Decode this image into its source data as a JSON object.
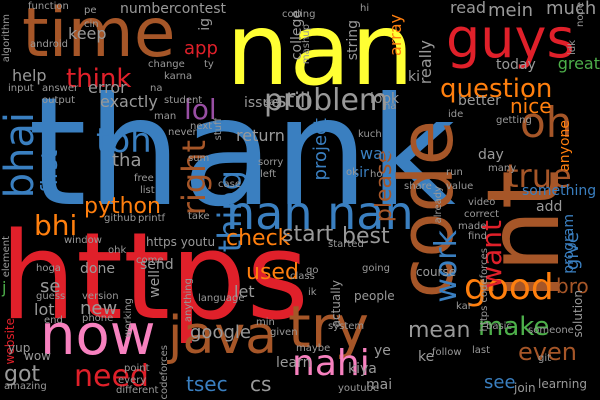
{
  "palette": {
    "background": "#000000",
    "blue": "#3a7fc0",
    "red": "#e0202a",
    "yellow": "#ffff33",
    "orange": "#ff7f0e",
    "brown": "#a65628",
    "pink": "#f781bf",
    "purple": "#984ea3",
    "green": "#4daf4a",
    "gray": "#999999"
  },
  "words": [
    {
      "text": "thank",
      "color": "blue"
    },
    {
      "text": "https",
      "color": "red"
    },
    {
      "text": "nan",
      "color": "yellow"
    },
    {
      "text": "time",
      "color": "brown"
    },
    {
      "text": "guys",
      "color": "red"
    },
    {
      "text": "int",
      "color": "brown"
    },
    {
      "text": "code",
      "color": "brown"
    },
    {
      "text": "now",
      "color": "pink"
    },
    {
      "text": "java",
      "color": "brown"
    },
    {
      "text": "try",
      "color": "brown"
    },
    {
      "text": "nan nan",
      "color": "blue"
    },
    {
      "text": "problem",
      "color": "gray"
    },
    {
      "text": "question",
      "color": "orange"
    },
    {
      "text": "bhai",
      "color": "blue"
    },
    {
      "text": "lol",
      "color": "purple"
    },
    {
      "text": "oh",
      "color": "brown"
    },
    {
      "text": "good",
      "color": "orange"
    },
    {
      "text": "true",
      "color": "brown"
    },
    {
      "text": "work",
      "color": "blue"
    },
    {
      "text": "nahi",
      "color": "pink"
    },
    {
      "text": "need",
      "color": "red"
    },
    {
      "text": "think",
      "color": "red"
    },
    {
      "text": "toh",
      "color": "blue"
    },
    {
      "text": "right",
      "color": "brown"
    },
    {
      "text": "thing",
      "color": "blue"
    },
    {
      "text": "bhi",
      "color": "orange"
    },
    {
      "text": "python",
      "color": "orange"
    },
    {
      "text": "check",
      "color": "orange"
    },
    {
      "text": "start",
      "color": "gray"
    },
    {
      "text": "best",
      "color": "gray"
    },
    {
      "text": "want",
      "color": "red"
    },
    {
      "text": "make",
      "color": "green"
    },
    {
      "text": "even",
      "color": "brown"
    },
    {
      "text": "mean",
      "color": "gray"
    },
    {
      "text": "please",
      "color": "brown"
    },
    {
      "text": "first",
      "color": "blue"
    },
    {
      "text": "used",
      "color": "orange"
    },
    {
      "text": "got",
      "color": "gray"
    },
    {
      "text": "tsec",
      "color": "blue"
    },
    {
      "text": "cs",
      "color": "gray"
    },
    {
      "text": "google",
      "color": "gray"
    },
    {
      "text": "mein",
      "color": "gray"
    },
    {
      "text": "much",
      "color": "gray"
    },
    {
      "text": "bro",
      "color": "brown"
    },
    {
      "text": "give",
      "color": "blue"
    },
    {
      "text": "see",
      "color": "blue"
    },
    {
      "text": "app",
      "color": "red"
    },
    {
      "text": "keep",
      "color": "gray"
    },
    {
      "text": "help",
      "color": "gray"
    },
    {
      "text": "error",
      "color": "gray"
    },
    {
      "text": "exactly",
      "color": "gray"
    },
    {
      "text": "number",
      "color": "gray"
    },
    {
      "text": "contest",
      "color": "gray"
    },
    {
      "text": "ig",
      "color": "gray"
    },
    {
      "text": "tha",
      "color": "gray"
    },
    {
      "text": "still",
      "color": "gray"
    },
    {
      "text": "issue",
      "color": "gray"
    },
    {
      "text": "nice",
      "color": "orange"
    },
    {
      "text": "today",
      "color": "gray"
    },
    {
      "text": "great",
      "color": "green"
    },
    {
      "text": "array",
      "color": "orange"
    },
    {
      "text": "really",
      "color": "gray"
    },
    {
      "text": "read",
      "color": "gray"
    },
    {
      "text": "project",
      "color": "blue"
    },
    {
      "text": "sir",
      "color": "blue"
    },
    {
      "text": "way",
      "color": "blue"
    },
    {
      "text": "day",
      "color": "gray"
    },
    {
      "text": "anyone",
      "color": "orange"
    },
    {
      "text": "something",
      "color": "blue"
    },
    {
      "text": "college",
      "color": "gray"
    },
    {
      "text": "string",
      "color": "gray"
    },
    {
      "text": "better",
      "color": "gray"
    },
    {
      "text": "look",
      "color": "gray"
    },
    {
      "text": "return",
      "color": "gray"
    },
    {
      "text": "ki",
      "color": "gray"
    },
    {
      "text": "add",
      "color": "gray"
    },
    {
      "text": "send",
      "color": "gray"
    },
    {
      "text": "let",
      "color": "gray"
    },
    {
      "text": "se",
      "color": "gray"
    },
    {
      "text": "new",
      "color": "gray"
    },
    {
      "text": "lot",
      "color": "gray"
    },
    {
      "text": "done",
      "color": "gray"
    },
    {
      "text": "well",
      "color": "gray"
    },
    {
      "text": "program",
      "color": "blue"
    },
    {
      "text": "solution",
      "color": "gray"
    },
    {
      "text": "learn",
      "color": "gray"
    },
    {
      "text": "kiya",
      "color": "gray"
    },
    {
      "text": "ye",
      "color": "gray"
    },
    {
      "text": "ke",
      "color": "gray"
    },
    {
      "text": "mai",
      "color": "gray"
    },
    {
      "text": "website",
      "color": "red"
    },
    {
      "text": "course",
      "color": "gray"
    },
    {
      "text": "actually",
      "color": "gray"
    },
    {
      "text": "people",
      "color": "gray"
    },
    {
      "text": "https youtu",
      "color": "gray"
    },
    {
      "text": "https codeforces",
      "color": "gray"
    },
    {
      "text": "language",
      "color": "gray"
    },
    {
      "text": "yup",
      "color": "gray"
    },
    {
      "text": "wow",
      "color": "gray"
    },
    {
      "text": "join",
      "color": "gray"
    },
    {
      "text": "learning",
      "color": "gray"
    },
    {
      "text": "amazing",
      "color": "gray"
    },
    {
      "text": "codeforces",
      "color": "gray"
    },
    {
      "text": "different",
      "color": "gray"
    },
    {
      "text": "youtube",
      "color": "gray"
    },
    {
      "text": "stuff",
      "color": "gray"
    },
    {
      "text": "coding",
      "color": "gray"
    },
    {
      "text": "mashup",
      "color": "gray"
    },
    {
      "text": "function",
      "color": "gray"
    },
    {
      "text": "algorithm",
      "color": "gray"
    },
    {
      "text": "android",
      "color": "gray"
    },
    {
      "text": "student",
      "color": "gray"
    },
    {
      "text": "github",
      "color": "gray"
    },
    {
      "text": "printf",
      "color": "gray"
    },
    {
      "text": "video",
      "color": "gray"
    },
    {
      "text": "correct",
      "color": "gray"
    },
    {
      "text": "window",
      "color": "gray"
    },
    {
      "text": "element",
      "color": "gray"
    },
    {
      "text": "version",
      "color": "gray"
    },
    {
      "text": "working",
      "color": "gray"
    },
    {
      "text": "basic",
      "color": "gray"
    },
    {
      "text": "system",
      "color": "gray"
    },
    {
      "text": "anything",
      "color": "gray"
    },
    {
      "text": "maybe",
      "color": "gray"
    },
    {
      "text": "started",
      "color": "gray"
    },
    {
      "text": "going",
      "color": "gray"
    },
    {
      "text": "already",
      "color": "gray"
    },
    {
      "text": "getting",
      "color": "gray"
    },
    {
      "text": "share",
      "color": "gray"
    },
    {
      "text": "answer",
      "color": "gray"
    },
    {
      "text": "output",
      "color": "gray"
    },
    {
      "text": "input",
      "color": "gray"
    },
    {
      "text": "change",
      "color": "gray"
    },
    {
      "text": "karna",
      "color": "gray"
    },
    {
      "text": "never",
      "color": "gray"
    },
    {
      "text": "sorry",
      "color": "gray"
    },
    {
      "text": "left",
      "color": "gray"
    },
    {
      "text": "kuch",
      "color": "gray"
    },
    {
      "text": "value",
      "color": "gray"
    },
    {
      "text": "find",
      "color": "gray"
    },
    {
      "text": "many",
      "color": "gray"
    },
    {
      "text": "someone",
      "color": "gray"
    },
    {
      "text": "follow",
      "color": "gray"
    },
    {
      "text": "last",
      "color": "gray"
    },
    {
      "text": "phone",
      "color": "gray"
    },
    {
      "text": "hoga",
      "color": "gray"
    },
    {
      "text": "guess",
      "color": "gray"
    },
    {
      "text": "class",
      "color": "gray"
    },
    {
      "text": "given",
      "color": "gray"
    },
    {
      "text": "every",
      "color": "gray"
    },
    {
      "text": "point",
      "color": "gray"
    },
    {
      "text": "come",
      "color": "gray"
    },
    {
      "text": "list",
      "color": "gray"
    },
    {
      "text": "take",
      "color": "gray"
    },
    {
      "text": "free",
      "color": "gray"
    },
    {
      "text": "next",
      "color": "gray"
    },
    {
      "text": "case",
      "color": "gray"
    },
    {
      "text": "run",
      "color": "gray"
    },
    {
      "text": "made",
      "color": "gray"
    },
    {
      "text": "nope",
      "color": "gray"
    },
    {
      "text": "idk",
      "color": "gray"
    },
    {
      "text": "say",
      "color": "gray"
    },
    {
      "text": "ide",
      "color": "gray"
    },
    {
      "text": "sum",
      "color": "gray"
    },
    {
      "text": "ty",
      "color": "gray"
    },
    {
      "text": "cin",
      "color": "gray"
    },
    {
      "text": "pe",
      "color": "gray"
    },
    {
      "text": "ok",
      "color": "gray"
    },
    {
      "text": "ho",
      "color": "gray"
    },
    {
      "text": "go",
      "color": "gray"
    },
    {
      "text": "ik",
      "color": "gray"
    },
    {
      "text": "git",
      "color": "gray"
    },
    {
      "text": "kar",
      "color": "gray"
    },
    {
      "text": "min",
      "color": "gray"
    },
    {
      "text": "end",
      "color": "gray"
    },
    {
      "text": "ohk",
      "color": "gray"
    },
    {
      "text": "man",
      "color": "gray"
    },
    {
      "text": "na",
      "color": "gray"
    },
    {
      "text": "j",
      "color": "green"
    },
    {
      "text": "hi",
      "color": "gray"
    },
    {
      "text": "ha",
      "color": "gray"
    }
  ]
}
